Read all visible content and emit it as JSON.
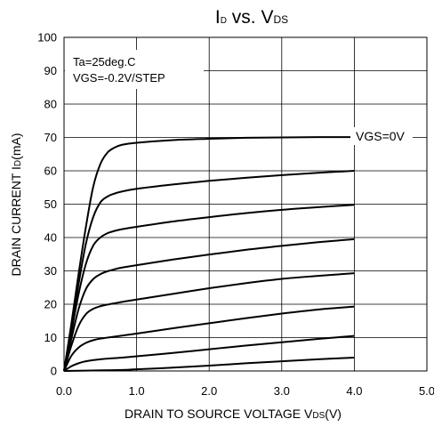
{
  "chart_data": {
    "type": "line",
    "title": {
      "main_1": "I",
      "sub_1": "D",
      "main_2": " vs. V",
      "sub_2": "DS"
    },
    "xlabel": {
      "main": "DRAIN TO SOURCE VOLTAGE  V",
      "sub": "DS",
      "tail": "(V)"
    },
    "ylabel": {
      "main": "DRAIN CURRENT  I",
      "sub": "D",
      "tail": "(mA)"
    },
    "xlim": [
      0,
      5
    ],
    "ylim": [
      0,
      100
    ],
    "x_ticks": [
      "0.0",
      "1.0",
      "2.0",
      "3.0",
      "4.0",
      "5.0"
    ],
    "x_tick_values": [
      0,
      1,
      2,
      3,
      4,
      5
    ],
    "y_ticks": [
      "0",
      "10",
      "20",
      "30",
      "40",
      "50",
      "60",
      "70",
      "80",
      "90",
      "100"
    ],
    "y_tick_values": [
      0,
      10,
      20,
      30,
      40,
      50,
      60,
      70,
      80,
      90,
      100
    ],
    "grid": true,
    "annotations": {
      "conditions_line1": "Ta=25deg.C",
      "conditions_line2": "VGS=-0.2V/STEP",
      "top_curve_label": "VGS=0V"
    },
    "series": [
      {
        "values": [
          [
            0,
            0
          ],
          [
            0.1,
            14
          ],
          [
            0.2,
            29
          ],
          [
            0.3,
            43
          ],
          [
            0.4,
            55
          ],
          [
            0.5,
            62
          ],
          [
            0.6,
            65.5
          ],
          [
            0.7,
            67
          ],
          [
            0.8,
            67.8
          ],
          [
            1.0,
            68.4
          ],
          [
            1.5,
            69.2
          ],
          [
            2.0,
            69.6
          ],
          [
            2.5,
            69.9
          ],
          [
            3.0,
            70.0
          ],
          [
            3.5,
            70.1
          ],
          [
            4.0,
            70.1
          ]
        ]
      },
      {
        "values": [
          [
            0,
            0
          ],
          [
            0.1,
            13
          ],
          [
            0.2,
            26
          ],
          [
            0.3,
            38
          ],
          [
            0.4,
            46
          ],
          [
            0.5,
            50.5
          ],
          [
            0.6,
            52.3
          ],
          [
            0.7,
            53.2
          ],
          [
            0.8,
            53.8
          ],
          [
            1.0,
            54.6
          ],
          [
            1.5,
            55.9
          ],
          [
            2.0,
            57.0
          ],
          [
            2.5,
            57.9
          ],
          [
            3.0,
            58.7
          ],
          [
            3.5,
            59.4
          ],
          [
            4.0,
            60.0
          ]
        ]
      },
      {
        "values": [
          [
            0,
            0
          ],
          [
            0.1,
            11.5
          ],
          [
            0.2,
            23
          ],
          [
            0.3,
            32
          ],
          [
            0.4,
            37.5
          ],
          [
            0.5,
            40
          ],
          [
            0.6,
            41.3
          ],
          [
            0.7,
            42.0
          ],
          [
            0.8,
            42.5
          ],
          [
            1.0,
            43.2
          ],
          [
            1.5,
            44.8
          ],
          [
            2.0,
            46.1
          ],
          [
            2.5,
            47.3
          ],
          [
            3.0,
            48.3
          ],
          [
            3.5,
            49.1
          ],
          [
            4.0,
            49.8
          ]
        ]
      },
      {
        "values": [
          [
            0,
            0
          ],
          [
            0.1,
            9.5
          ],
          [
            0.2,
            18.5
          ],
          [
            0.3,
            24.5
          ],
          [
            0.4,
            27.5
          ],
          [
            0.5,
            29.0
          ],
          [
            0.6,
            29.9
          ],
          [
            0.7,
            30.5
          ],
          [
            0.8,
            31.0
          ],
          [
            1.0,
            31.7
          ],
          [
            1.5,
            33.4
          ],
          [
            2.0,
            34.9
          ],
          [
            2.5,
            36.3
          ],
          [
            3.0,
            37.5
          ],
          [
            3.5,
            38.6
          ],
          [
            4.0,
            39.5
          ]
        ]
      },
      {
        "values": [
          [
            0,
            0
          ],
          [
            0.1,
            7.5
          ],
          [
            0.2,
            13.5
          ],
          [
            0.3,
            17.0
          ],
          [
            0.4,
            18.6
          ],
          [
            0.5,
            19.4
          ],
          [
            0.6,
            19.9
          ],
          [
            0.7,
            20.3
          ],
          [
            0.8,
            20.7
          ],
          [
            1.0,
            21.4
          ],
          [
            1.5,
            23.1
          ],
          [
            2.0,
            24.8
          ],
          [
            2.5,
            26.3
          ],
          [
            3.0,
            27.6
          ],
          [
            3.5,
            28.5
          ],
          [
            4.0,
            29.3
          ]
        ]
      },
      {
        "values": [
          [
            0,
            0
          ],
          [
            0.1,
            4.5
          ],
          [
            0.2,
            7.0
          ],
          [
            0.3,
            8.4
          ],
          [
            0.4,
            9.2
          ],
          [
            0.5,
            9.7
          ],
          [
            0.7,
            10.3
          ],
          [
            1.0,
            11.2
          ],
          [
            1.5,
            12.8
          ],
          [
            2.0,
            14.3
          ],
          [
            2.5,
            15.8
          ],
          [
            3.0,
            17.2
          ],
          [
            3.5,
            18.4
          ],
          [
            4.0,
            19.3
          ]
        ]
      },
      {
        "values": [
          [
            0,
            0
          ],
          [
            0.1,
            1.4
          ],
          [
            0.2,
            2.3
          ],
          [
            0.3,
            2.9
          ],
          [
            0.5,
            3.5
          ],
          [
            0.8,
            4.0
          ],
          [
            1.0,
            4.4
          ],
          [
            1.5,
            5.4
          ],
          [
            2.0,
            6.5
          ],
          [
            2.5,
            7.6
          ],
          [
            3.0,
            8.6
          ],
          [
            3.5,
            9.6
          ],
          [
            4.0,
            10.5
          ]
        ]
      },
      {
        "values": [
          [
            0,
            0
          ],
          [
            0.3,
            0.1
          ],
          [
            0.8,
            0.3
          ],
          [
            1.0,
            0.5
          ],
          [
            1.5,
            1.0
          ],
          [
            2.0,
            1.6
          ],
          [
            2.5,
            2.3
          ],
          [
            3.0,
            2.9
          ],
          [
            3.5,
            3.5
          ],
          [
            4.0,
            4.0
          ]
        ]
      }
    ]
  }
}
